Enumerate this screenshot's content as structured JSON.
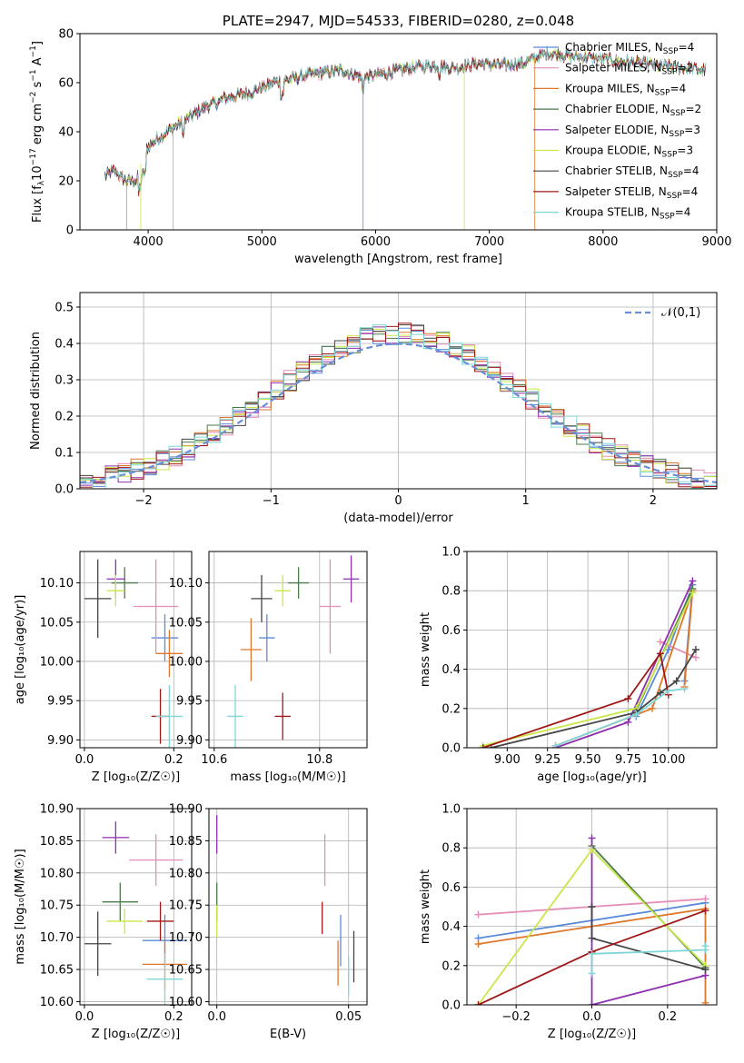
{
  "colors": {
    "Chabrier MILES": "#5b8bd9",
    "Salpeter MILES": "#e38db8",
    "Kroupa MILES": "#e0772a",
    "Chabrier ELODIE": "#4a7a4a",
    "Salpeter ELODIE": "#8e2fb0",
    "Kroupa ELODIE": "#c8e84a",
    "Chabrier STELIB": "#444444",
    "Salpeter STELIB": "#a01818",
    "Kroupa STELIB": "#7fd6d6",
    "normal": "#6a8fd6"
  },
  "chart_data": [
    {
      "id": "spectrum",
      "type": "line",
      "title": "PLATE=2947, MJD=54533, FIBERID=0280, z=0.048",
      "xlabel": "wavelength [Angstrom, rest frame]",
      "ylabel_main": "Flux [f",
      "ylabel_sub": "λ",
      "ylabel_mid1": "10",
      "ylabel_exp1": "−17",
      "ylabel_mid2": " erg cm",
      "ylabel_exp2": "−2",
      "ylabel_mid3": " s",
      "ylabel_exp3": "−1",
      "ylabel_mid4": " A",
      "ylabel_exp4": "−1",
      "ylabel_end": "]",
      "xlim": [
        3400,
        9000
      ],
      "ylim": [
        0,
        80
      ],
      "xticks": [
        4000,
        5000,
        6000,
        7000,
        8000,
        9000
      ],
      "yticks": [
        0,
        20,
        40,
        60,
        80
      ],
      "grid": false,
      "legend_position": "right",
      "legend": [
        {
          "name": "Chabrier MILES",
          "nssp": "4"
        },
        {
          "name": "Salpeter MILES",
          "nssp": "2"
        },
        {
          "name": "Kroupa MILES",
          "nssp": "4"
        },
        {
          "name": "Chabrier ELODIE",
          "nssp": "2"
        },
        {
          "name": "Salpeter ELODIE",
          "nssp": "3"
        },
        {
          "name": "Kroupa ELODIE",
          "nssp": "3"
        },
        {
          "name": "Chabrier STELIB",
          "nssp": "4"
        },
        {
          "name": "Salpeter STELIB",
          "nssp": "4"
        },
        {
          "name": "Kroupa STELIB",
          "nssp": "4"
        }
      ],
      "legend_label_suffix": ", N",
      "legend_label_sub": "SSP",
      "legend_label_eq": "=",
      "continuum": {
        "x": [
          3620,
          3700,
          3800,
          3900,
          3950,
          4000,
          4100,
          4300,
          4500,
          4700,
          4900,
          5100,
          5300,
          5500,
          5700,
          5900,
          6100,
          6300,
          6500,
          6700,
          6900,
          7100,
          7300,
          7500,
          7700,
          7900,
          8100,
          8300,
          8500,
          8700,
          8900
        ],
        "y": [
          22,
          24,
          20,
          20,
          30,
          34,
          38,
          44,
          50,
          54,
          56,
          60,
          62,
          64,
          65,
          62,
          64,
          66,
          67,
          66,
          68,
          67,
          68,
          72,
          71,
          70,
          69,
          68,
          67,
          66,
          65
        ]
      }
    },
    {
      "id": "residuals",
      "type": "histogram",
      "xlabel": "(data-model)/error",
      "ylabel": "Normed distribution",
      "xlim": [
        -2.5,
        2.5
      ],
      "ylim": [
        0,
        0.54
      ],
      "xticks": [
        -2,
        -1,
        0,
        1,
        2
      ],
      "yticks": [
        0.0,
        0.1,
        0.2,
        0.3,
        0.4,
        0.5
      ],
      "grid": true,
      "bin_width": 0.1,
      "reference_label": "𝒩(0,1)",
      "legend_position": "top-right"
    },
    {
      "id": "age_vs_Z",
      "type": "errorbar",
      "xlabel": "Z [log₁₀(Z/Z☉)]",
      "ylabel": "age  [log₁₀(age/yr)]",
      "xlim": [
        -0.01,
        0.24
      ],
      "ylim": [
        9.89,
        10.14
      ],
      "xticks": [
        0.0,
        0.2
      ],
      "yticks": [
        9.9,
        9.95,
        10.0,
        10.05,
        10.1
      ],
      "grid": true,
      "points": [
        {
          "series": "Chabrier MILES",
          "x": 0.18,
          "y": 10.03,
          "xerr": 0.03,
          "yerr": 0.03
        },
        {
          "series": "Salpeter MILES",
          "x": 0.16,
          "y": 10.07,
          "xerr": 0.05,
          "yerr": 0.06
        },
        {
          "series": "Kroupa MILES",
          "x": 0.19,
          "y": 10.01,
          "xerr": 0.03,
          "yerr": 0.03
        },
        {
          "series": "Chabrier ELODIE",
          "x": 0.09,
          "y": 10.1,
          "xerr": 0.03,
          "yerr": 0.02
        },
        {
          "series": "Salpeter ELODIE",
          "x": 0.07,
          "y": 10.105,
          "xerr": 0.02,
          "yerr": 0.025
        },
        {
          "series": "Kroupa ELODIE",
          "x": 0.07,
          "y": 10.09,
          "xerr": 0.02,
          "yerr": 0.02
        },
        {
          "series": "Chabrier STELIB",
          "x": 0.03,
          "y": 10.08,
          "xerr": 0.03,
          "yerr": 0.05
        },
        {
          "series": "Salpeter STELIB",
          "x": 0.17,
          "y": 9.93,
          "xerr": 0.02,
          "yerr": 0.035
        },
        {
          "series": "Kroupa STELIB",
          "x": 0.19,
          "y": 9.93,
          "xerr": 0.03,
          "yerr": 0.04
        }
      ]
    },
    {
      "id": "age_vs_mass",
      "type": "errorbar",
      "xlabel": "mass [log₁₀(M/M☉)]",
      "ylabel": "",
      "xlim": [
        10.59,
        10.89
      ],
      "ylim": [
        9.89,
        10.14
      ],
      "xticks": [
        10.6,
        10.8
      ],
      "yticks": [
        9.9,
        9.95,
        10.0,
        10.05,
        10.1
      ],
      "grid": true,
      "points": [
        {
          "series": "Chabrier MILES",
          "x": 10.7,
          "y": 10.03,
          "xerr": 0.015,
          "yerr": 0.03
        },
        {
          "series": "Salpeter MILES",
          "x": 10.82,
          "y": 10.07,
          "xerr": 0.02,
          "yerr": 0.06
        },
        {
          "series": "Kroupa MILES",
          "x": 10.67,
          "y": 10.015,
          "xerr": 0.02,
          "yerr": 0.04
        },
        {
          "series": "Chabrier ELODIE",
          "x": 10.76,
          "y": 10.1,
          "xerr": 0.02,
          "yerr": 0.02
        },
        {
          "series": "Salpeter ELODIE",
          "x": 10.86,
          "y": 10.105,
          "xerr": 0.015,
          "yerr": 0.03
        },
        {
          "series": "Kroupa ELODIE",
          "x": 10.73,
          "y": 10.09,
          "xerr": 0.015,
          "yerr": 0.02
        },
        {
          "series": "Chabrier STELIB",
          "x": 10.69,
          "y": 10.08,
          "xerr": 0.02,
          "yerr": 0.03
        },
        {
          "series": "Salpeter STELIB",
          "x": 10.73,
          "y": 9.93,
          "xerr": 0.015,
          "yerr": 0.03
        },
        {
          "series": "Kroupa STELIB",
          "x": 10.64,
          "y": 9.93,
          "xerr": 0.015,
          "yerr": 0.04
        }
      ]
    },
    {
      "id": "weight_vs_age",
      "type": "line",
      "xlabel": "age  [log₁₀(age/yr)]",
      "ylabel": "mass weight",
      "xlim": [
        8.75,
        10.3
      ],
      "ylim": [
        0.0,
        1.0
      ],
      "xticks": [
        9.0,
        9.25,
        9.5,
        9.75,
        10.0
      ],
      "yticks": [
        0.0,
        0.2,
        0.4,
        0.6,
        0.8,
        1.0
      ],
      "grid": true,
      "series": [
        {
          "name": "Chabrier MILES",
          "x": [
            9.8,
            10.0,
            10.15,
            10.1
          ],
          "y": [
            0.16,
            0.5,
            0.83,
            0.34
          ]
        },
        {
          "name": "Salpeter MILES",
          "x": [
            9.95,
            10.17
          ],
          "y": [
            0.54,
            0.46
          ]
        },
        {
          "name": "Kroupa MILES",
          "x": [
            9.3,
            9.9,
            10.15,
            10.1
          ],
          "y": [
            0.01,
            0.2,
            0.8,
            0.31
          ]
        },
        {
          "name": "Chabrier ELODIE",
          "x": [
            9.8,
            10.15
          ],
          "y": [
            0.19,
            0.81
          ]
        },
        {
          "name": "Salpeter ELODIE",
          "x": [
            9.3,
            9.75,
            10.15
          ],
          "y": [
            0.0,
            0.13,
            0.85
          ]
        },
        {
          "name": "Kroupa ELODIE",
          "x": [
            8.85,
            9.8,
            10.15
          ],
          "y": [
            0.01,
            0.2,
            0.79
          ]
        },
        {
          "name": "Chabrier STELIB",
          "x": [
            8.9,
            9.8,
            9.95,
            10.05,
            10.17
          ],
          "y": [
            0.0,
            0.18,
            0.28,
            0.34,
            0.5
          ]
        },
        {
          "name": "Salpeter STELIB",
          "x": [
            8.85,
            9.75,
            9.95,
            10.0
          ],
          "y": [
            0.0,
            0.25,
            0.48,
            0.27
          ]
        },
        {
          "name": "Kroupa STELIB",
          "x": [
            9.3,
            9.8,
            10.0,
            10.1
          ],
          "y": [
            0.01,
            0.17,
            0.29,
            0.3
          ]
        }
      ]
    },
    {
      "id": "mass_vs_Z",
      "type": "errorbar",
      "xlabel": "Z [log₁₀(Z/Z☉)]",
      "ylabel": "mass [log₁₀(M/M☉)]",
      "xlim": [
        -0.01,
        0.24
      ],
      "ylim": [
        10.595,
        10.9
      ],
      "xticks": [
        0.0,
        0.2
      ],
      "yticks": [
        10.6,
        10.65,
        10.7,
        10.75,
        10.8,
        10.85,
        10.9
      ],
      "grid": true,
      "points": [
        {
          "series": "Chabrier MILES",
          "x": 0.18,
          "y": 10.695,
          "xerr": 0.05,
          "yerr": 0.04
        },
        {
          "series": "Salpeter MILES",
          "x": 0.16,
          "y": 10.82,
          "xerr": 0.06,
          "yerr": 0.04
        },
        {
          "series": "Kroupa MILES",
          "x": 0.18,
          "y": 10.658,
          "xerr": 0.05,
          "yerr": 0.04
        },
        {
          "series": "Chabrier ELODIE",
          "x": 0.08,
          "y": 10.755,
          "xerr": 0.04,
          "yerr": 0.03
        },
        {
          "series": "Salpeter ELODIE",
          "x": 0.07,
          "y": 10.855,
          "xerr": 0.03,
          "yerr": 0.025
        },
        {
          "series": "Kroupa ELODIE",
          "x": 0.09,
          "y": 10.725,
          "xerr": 0.04,
          "yerr": 0.02
        },
        {
          "series": "Chabrier STELIB",
          "x": 0.03,
          "y": 10.69,
          "xerr": 0.03,
          "yerr": 0.05
        },
        {
          "series": "Salpeter STELIB",
          "x": 0.17,
          "y": 10.725,
          "xerr": 0.03,
          "yerr": 0.03
        },
        {
          "series": "Kroupa STELIB",
          "x": 0.18,
          "y": 10.635,
          "xerr": 0.04,
          "yerr": 0.04
        }
      ]
    },
    {
      "id": "mass_vs_ebv",
      "type": "errorbar",
      "xlabel": "E(B-V)",
      "ylabel": "",
      "xlim": [
        -0.003,
        0.057
      ],
      "ylim": [
        10.595,
        10.9
      ],
      "xticks": [
        0.0,
        0.05
      ],
      "yticks": [
        10.6,
        10.65,
        10.7,
        10.75,
        10.8,
        10.85,
        10.9
      ],
      "grid": true,
      "points": [
        {
          "series": "Chabrier MILES",
          "x": 0.047,
          "y": 10.695,
          "xerr": 0.0,
          "yerr": 0.04
        },
        {
          "series": "Salpeter MILES",
          "x": 0.041,
          "y": 10.82,
          "xerr": 0.0,
          "yerr": 0.04
        },
        {
          "series": "Kroupa MILES",
          "x": 0.046,
          "y": 10.66,
          "xerr": 0.0,
          "yerr": 0.035
        },
        {
          "series": "Chabrier ELODIE",
          "x": 0.0,
          "y": 10.755,
          "xerr": 0.0,
          "yerr": 0.03
        },
        {
          "series": "Salpeter ELODIE",
          "x": 0.0,
          "y": 10.86,
          "xerr": 0.0,
          "yerr": 0.03
        },
        {
          "series": "Kroupa ELODIE",
          "x": 0.0,
          "y": 10.725,
          "xerr": 0.0,
          "yerr": 0.025
        },
        {
          "series": "Chabrier STELIB",
          "x": 0.052,
          "y": 10.67,
          "xerr": 0.0,
          "yerr": 0.04
        },
        {
          "series": "Salpeter STELIB",
          "x": 0.04,
          "y": 10.73,
          "xerr": 0.0,
          "yerr": 0.025
        },
        {
          "series": "Kroupa STELIB",
          "x": 0.05,
          "y": 10.64,
          "xerr": 0.0,
          "yerr": 0.03
        }
      ]
    },
    {
      "id": "weight_vs_Z",
      "type": "line",
      "xlabel": "Z [log₁₀(Z/Z☉)]",
      "ylabel": "mass weight",
      "xlim": [
        -0.33,
        0.33
      ],
      "ylim": [
        0.0,
        1.0
      ],
      "xticks": [
        -0.2,
        0.0,
        0.2
      ],
      "yticks": [
        0.0,
        0.2,
        0.4,
        0.6,
        0.8,
        1.0
      ],
      "grid": true,
      "series": [
        {
          "name": "Chabrier MILES",
          "x": [
            -0.3,
            0.3
          ],
          "y": [
            0.34,
            0.52
          ]
        },
        {
          "name": "Salpeter MILES",
          "x": [
            -0.3,
            0.3
          ],
          "y": [
            0.46,
            0.54
          ]
        },
        {
          "name": "Kroupa MILES",
          "x": [
            -0.3,
            0.3,
            0.3
          ],
          "y": [
            0.31,
            0.49,
            0.01
          ]
        },
        {
          "name": "Chabrier ELODIE",
          "x": [
            0.0,
            0.3
          ],
          "y": [
            0.81,
            0.19
          ]
        },
        {
          "name": "Salpeter ELODIE",
          "x": [
            0.0,
            0.0,
            0.3
          ],
          "y": [
            0.85,
            0.0,
            0.15
          ]
        },
        {
          "name": "Kroupa ELODIE",
          "x": [
            -0.3,
            0.0,
            0.3
          ],
          "y": [
            0.0,
            0.79,
            0.2
          ]
        },
        {
          "name": "Chabrier STELIB",
          "x": [
            0.0,
            0.0,
            0.3
          ],
          "y": [
            0.5,
            0.34,
            0.18
          ]
        },
        {
          "name": "Salpeter STELIB",
          "x": [
            -0.3,
            0.0,
            0.3
          ],
          "y": [
            0.0,
            0.27,
            0.48
          ]
        },
        {
          "name": "Kroupa STELIB",
          "x": [
            0.0,
            0.0,
            0.3,
            0.3
          ],
          "y": [
            0.16,
            0.26,
            0.28,
            0.3
          ]
        }
      ]
    }
  ]
}
